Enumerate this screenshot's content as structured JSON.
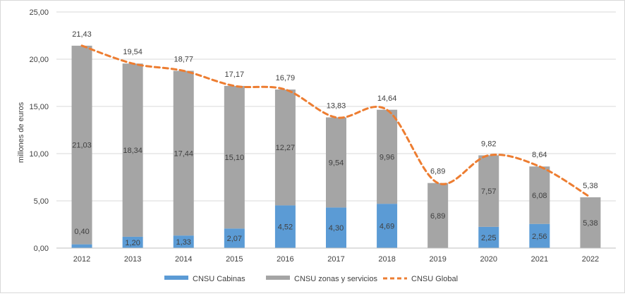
{
  "chart_data": {
    "type": "bar",
    "stacked": true,
    "categories": [
      "2012",
      "2013",
      "2014",
      "2015",
      "2016",
      "2017",
      "2018",
      "2019",
      "2020",
      "2021",
      "2022"
    ],
    "series": [
      {
        "name": "CNSU Cabinas",
        "kind": "bar",
        "color": "#5b9bd5",
        "values": [
          0.4,
          1.2,
          1.33,
          2.07,
          4.52,
          4.3,
          4.69,
          0,
          2.25,
          2.56,
          0
        ],
        "labels": [
          "0,40",
          "1,20",
          "1,33",
          "2,07",
          "4,52",
          "4,30",
          "4,69",
          null,
          "2,25",
          "2,56",
          null
        ]
      },
      {
        "name": "CNSU zonas y servicios",
        "kind": "bar",
        "color": "#a5a5a5",
        "values": [
          21.03,
          18.34,
          17.44,
          15.1,
          12.27,
          9.54,
          9.96,
          6.89,
          7.57,
          6.08,
          5.38
        ],
        "labels": [
          "21,03",
          "18,34",
          "17,44",
          "15,10",
          "12,27",
          "9,54",
          "9,96",
          "6,89",
          "7,57",
          "6,08",
          "5,38"
        ]
      },
      {
        "name": "CNSU Global",
        "kind": "line",
        "style": "dashed-smooth",
        "color": "#ed7d31",
        "values": [
          21.43,
          19.54,
          18.77,
          17.17,
          16.79,
          13.83,
          14.64,
          6.89,
          9.82,
          8.64,
          5.38
        ],
        "labels": [
          "21,43",
          "19,54",
          "18,77",
          "17,17",
          "16,79",
          "13,83",
          "14,64",
          "6,89",
          "9,82",
          "8,64",
          "5,38"
        ]
      }
    ],
    "ylabel": "millones de euros",
    "xlabel": "",
    "ylim": [
      0,
      25
    ],
    "yticks": [
      "0,00",
      "5,00",
      "10,00",
      "15,00",
      "20,00",
      "25,00"
    ],
    "ytick_values": [
      0,
      5,
      10,
      15,
      20,
      25
    ],
    "grid": true,
    "legend": "bottom-center"
  }
}
